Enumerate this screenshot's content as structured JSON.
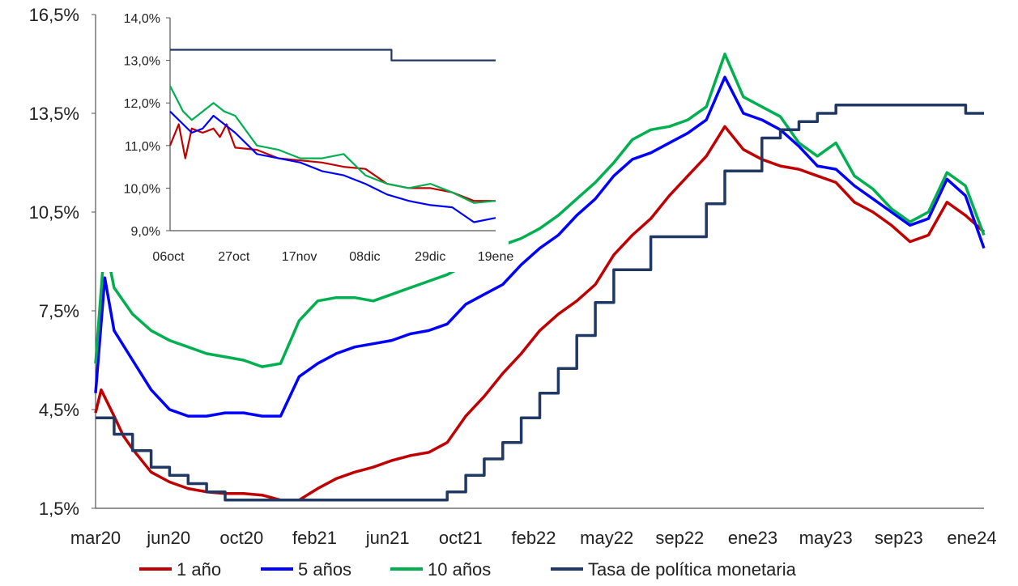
{
  "chart_data": {
    "type": "line",
    "title": "",
    "xlabel": "",
    "ylabel": "",
    "main": {
      "x_tick_labels": [
        "mar20",
        "jun20",
        "oct20",
        "feb21",
        "jun21",
        "oct21",
        "feb22",
        "may22",
        "sep22",
        "ene23",
        "may23",
        "sep23",
        "ene24"
      ],
      "y_tick_labels": [
        "1,5%",
        "4,5%",
        "7,5%",
        "10,5%",
        "13,5%",
        "16,5%"
      ],
      "ylim": [
        1.5,
        16.5
      ],
      "x_index_range": [
        0,
        48
      ],
      "series": [
        {
          "name": "1 año",
          "color": "#c00000",
          "points": [
            [
              0,
              4.4
            ],
            [
              0.3,
              5.1
            ],
            [
              1,
              4.3
            ],
            [
              1.5,
              3.7
            ],
            [
              2,
              3.3
            ],
            [
              3,
              2.6
            ],
            [
              4,
              2.3
            ],
            [
              5,
              2.1
            ],
            [
              6,
              2.0
            ],
            [
              7,
              1.95
            ],
            [
              8,
              1.95
            ],
            [
              9,
              1.9
            ],
            [
              10,
              1.75
            ],
            [
              11,
              1.75
            ],
            [
              12,
              2.1
            ],
            [
              13,
              2.4
            ],
            [
              14,
              2.6
            ],
            [
              15,
              2.75
            ],
            [
              16,
              2.95
            ],
            [
              17,
              3.1
            ],
            [
              18,
              3.2
            ],
            [
              19,
              3.5
            ],
            [
              20,
              4.3
            ],
            [
              21,
              4.9
            ],
            [
              22,
              5.6
            ],
            [
              23,
              6.2
            ],
            [
              24,
              6.9
            ],
            [
              25,
              7.4
            ],
            [
              26,
              7.8
            ],
            [
              27,
              8.3
            ],
            [
              28,
              9.2
            ],
            [
              29,
              9.8
            ],
            [
              30,
              10.3
            ],
            [
              31,
              11.0
            ],
            [
              32,
              11.6
            ],
            [
              33,
              12.2
            ],
            [
              34,
              13.1
            ],
            [
              35,
              12.4
            ],
            [
              36,
              12.1
            ],
            [
              37,
              11.9
            ],
            [
              38,
              11.8
            ],
            [
              39,
              11.6
            ],
            [
              40,
              11.4
            ],
            [
              41,
              10.8
            ],
            [
              42,
              10.5
            ],
            [
              43,
              10.1
            ],
            [
              44,
              9.6
            ],
            [
              45,
              9.8
            ],
            [
              46,
              10.8
            ],
            [
              47,
              10.4
            ],
            [
              48,
              9.9
            ]
          ]
        },
        {
          "name": "5 años",
          "color": "#0000ff",
          "points": [
            [
              0,
              5.0
            ],
            [
              0.5,
              8.5
            ],
            [
              1,
              6.9
            ],
            [
              2,
              6.0
            ],
            [
              3,
              5.1
            ],
            [
              4,
              4.5
            ],
            [
              5,
              4.3
            ],
            [
              6,
              4.3
            ],
            [
              7,
              4.4
            ],
            [
              8,
              4.4
            ],
            [
              9,
              4.3
            ],
            [
              10,
              4.3
            ],
            [
              11,
              5.5
            ],
            [
              12,
              5.9
            ],
            [
              13,
              6.2
            ],
            [
              14,
              6.4
            ],
            [
              15,
              6.5
            ],
            [
              16,
              6.6
            ],
            [
              17,
              6.8
            ],
            [
              18,
              6.9
            ],
            [
              19,
              7.1
            ],
            [
              20,
              7.7
            ],
            [
              21,
              8.0
            ],
            [
              22,
              8.3
            ],
            [
              23,
              8.9
            ],
            [
              24,
              9.4
            ],
            [
              25,
              9.8
            ],
            [
              26,
              10.4
            ],
            [
              27,
              10.9
            ],
            [
              28,
              11.6
            ],
            [
              29,
              12.1
            ],
            [
              30,
              12.3
            ],
            [
              31,
              12.6
            ],
            [
              32,
              12.9
            ],
            [
              33,
              13.3
            ],
            [
              34,
              14.6
            ],
            [
              35,
              13.5
            ],
            [
              36,
              13.3
            ],
            [
              37,
              13.0
            ],
            [
              38,
              12.5
            ],
            [
              39,
              11.9
            ],
            [
              40,
              11.8
            ],
            [
              41,
              11.3
            ],
            [
              42,
              10.9
            ],
            [
              43,
              10.5
            ],
            [
              44,
              10.1
            ],
            [
              45,
              10.3
            ],
            [
              46,
              11.5
            ],
            [
              47,
              11.0
            ],
            [
              48,
              9.4
            ]
          ]
        },
        {
          "name": "10 años",
          "color": "#00b050",
          "points": [
            [
              0,
              5.9
            ],
            [
              0.5,
              9.6
            ],
            [
              1,
              8.2
            ],
            [
              2,
              7.4
            ],
            [
              3,
              6.9
            ],
            [
              4,
              6.6
            ],
            [
              5,
              6.4
            ],
            [
              6,
              6.2
            ],
            [
              7,
              6.1
            ],
            [
              8,
              6.0
            ],
            [
              9,
              5.8
            ],
            [
              10,
              5.9
            ],
            [
              11,
              7.2
            ],
            [
              12,
              7.8
            ],
            [
              13,
              7.9
            ],
            [
              14,
              7.9
            ],
            [
              15,
              7.8
            ],
            [
              16,
              8.0
            ],
            [
              17,
              8.2
            ],
            [
              18,
              8.4
            ],
            [
              19,
              8.6
            ],
            [
              20,
              8.9
            ],
            [
              21,
              9.2
            ],
            [
              22,
              9.5
            ],
            [
              23,
              9.7
            ],
            [
              24,
              10.0
            ],
            [
              25,
              10.4
            ],
            [
              26,
              10.9
            ],
            [
              27,
              11.4
            ],
            [
              28,
              12.0
            ],
            [
              29,
              12.7
            ],
            [
              30,
              13.0
            ],
            [
              31,
              13.1
            ],
            [
              32,
              13.3
            ],
            [
              33,
              13.7
            ],
            [
              34,
              15.3
            ],
            [
              35,
              14.0
            ],
            [
              36,
              13.7
            ],
            [
              37,
              13.4
            ],
            [
              38,
              12.6
            ],
            [
              39,
              12.2
            ],
            [
              40,
              12.6
            ],
            [
              41,
              11.6
            ],
            [
              42,
              11.2
            ],
            [
              43,
              10.6
            ],
            [
              44,
              10.2
            ],
            [
              45,
              10.5
            ],
            [
              46,
              11.7
            ],
            [
              47,
              11.3
            ],
            [
              48,
              9.8
            ]
          ]
        },
        {
          "name": "Tasa de política monetaria",
          "color": "#1f3864",
          "step": true,
          "points": [
            [
              0,
              4.25
            ],
            [
              1,
              3.75
            ],
            [
              2,
              3.25
            ],
            [
              3,
              2.75
            ],
            [
              4,
              2.5
            ],
            [
              5,
              2.25
            ],
            [
              6,
              2.0
            ],
            [
              7,
              1.75
            ],
            [
              18,
              1.75
            ],
            [
              19,
              2.0
            ],
            [
              20,
              2.5
            ],
            [
              21,
              3.0
            ],
            [
              22,
              3.5
            ],
            [
              23,
              4.25
            ],
            [
              24,
              5.0
            ],
            [
              25,
              5.75
            ],
            [
              26,
              6.75
            ],
            [
              27,
              7.75
            ],
            [
              28,
              8.75
            ],
            [
              30,
              9.75
            ],
            [
              33,
              10.75
            ],
            [
              34,
              11.75
            ],
            [
              35,
              11.75
            ],
            [
              36,
              12.75
            ],
            [
              37,
              13.0
            ],
            [
              38,
              13.25
            ],
            [
              39,
              13.5
            ],
            [
              40,
              13.75
            ],
            [
              41,
              13.75
            ],
            [
              47,
              13.75
            ],
            [
              47.01,
              13.5
            ],
            [
              48,
              13.5
            ]
          ]
        }
      ]
    },
    "inset": {
      "x_tick_labels": [
        "06oct",
        "27oct",
        "17nov",
        "08dic",
        "29dic",
        "19ene"
      ],
      "y_tick_labels": [
        "9,0%",
        "10,0%",
        "11,0%",
        "12,0%",
        "13,0%",
        "14,0%"
      ],
      "ylim": [
        9.0,
        14.0
      ],
      "x_index_range": [
        0,
        15
      ],
      "series": [
        {
          "name": "1 año",
          "color": "#c00000",
          "points": [
            [
              0,
              11.0
            ],
            [
              0.4,
              11.5
            ],
            [
              0.7,
              10.7
            ],
            [
              1,
              11.4
            ],
            [
              1.5,
              11.3
            ],
            [
              2,
              11.4
            ],
            [
              2.3,
              11.2
            ],
            [
              2.6,
              11.5
            ],
            [
              3,
              10.95
            ],
            [
              4,
              10.9
            ],
            [
              5,
              10.7
            ],
            [
              6,
              10.65
            ],
            [
              7,
              10.6
            ],
            [
              8,
              10.5
            ],
            [
              9,
              10.45
            ],
            [
              10,
              10.1
            ],
            [
              11,
              10.0
            ],
            [
              12,
              10.0
            ],
            [
              13,
              9.9
            ],
            [
              14,
              9.7
            ],
            [
              15,
              9.7
            ]
          ]
        },
        {
          "name": "5 años",
          "color": "#0000ff",
          "points": [
            [
              0,
              11.8
            ],
            [
              0.6,
              11.5
            ],
            [
              1,
              11.3
            ],
            [
              1.5,
              11.4
            ],
            [
              2,
              11.7
            ],
            [
              2.5,
              11.5
            ],
            [
              3,
              11.3
            ],
            [
              4,
              10.8
            ],
            [
              5,
              10.7
            ],
            [
              6,
              10.6
            ],
            [
              7,
              10.4
            ],
            [
              8,
              10.3
            ],
            [
              9,
              10.1
            ],
            [
              10,
              9.85
            ],
            [
              11,
              9.7
            ],
            [
              12,
              9.6
            ],
            [
              13,
              9.55
            ],
            [
              14,
              9.2
            ],
            [
              15,
              9.3
            ]
          ]
        },
        {
          "name": "10 años",
          "color": "#00b050",
          "points": [
            [
              0,
              12.4
            ],
            [
              0.6,
              11.8
            ],
            [
              1,
              11.6
            ],
            [
              1.5,
              11.8
            ],
            [
              2,
              12.0
            ],
            [
              2.5,
              11.8
            ],
            [
              3,
              11.7
            ],
            [
              4,
              11.0
            ],
            [
              5,
              10.9
            ],
            [
              6,
              10.7
            ],
            [
              7,
              10.7
            ],
            [
              8,
              10.8
            ],
            [
              9,
              10.3
            ],
            [
              10,
              10.1
            ],
            [
              11,
              10.0
            ],
            [
              12,
              10.1
            ],
            [
              13,
              9.9
            ],
            [
              14,
              9.65
            ],
            [
              15,
              9.7
            ]
          ]
        },
        {
          "name": "Tasa de política monetaria",
          "color": "#1f3864",
          "step": true,
          "points": [
            [
              0,
              13.25
            ],
            [
              10.2,
              13.25
            ],
            [
              10.2,
              13.0
            ],
            [
              15,
              13.0
            ]
          ]
        }
      ]
    },
    "legend": [
      {
        "label": "1 año",
        "color": "#c00000"
      },
      {
        "label": "5 años",
        "color": "#0000ff"
      },
      {
        "label": "10 años",
        "color": "#00b050"
      },
      {
        "label": "Tasa de política monetaria",
        "color": "#1f3864"
      }
    ],
    "legend_position": "bottom",
    "grid": false
  }
}
